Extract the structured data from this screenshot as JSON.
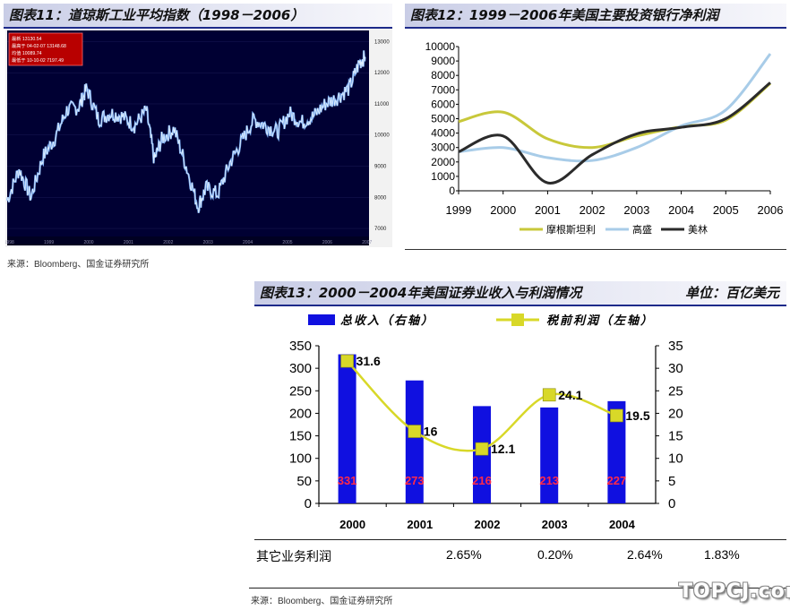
{
  "chart_data": [
    {
      "id": "fig11",
      "type": "line",
      "title": "图表11：道琼斯工业平均指数（1998－2006）",
      "x": [
        1998.0,
        1998.3,
        1998.6,
        1998.9,
        1999.2,
        1999.5,
        1999.8,
        2000.0,
        2000.3,
        2000.6,
        2000.9,
        2001.2,
        2001.5,
        2001.7,
        2001.9,
        2002.2,
        2002.5,
        2002.8,
        2003.0,
        2003.3,
        2003.6,
        2003.9,
        2004.2,
        2004.5,
        2004.8,
        2005.1,
        2005.4,
        2005.7,
        2006.0,
        2006.3,
        2006.6,
        2006.85,
        2007.0
      ],
      "values": [
        7900,
        8900,
        8000,
        9300,
        9900,
        10800,
        10900,
        11500,
        10500,
        10700,
        10600,
        10300,
        10800,
        9200,
        9900,
        10200,
        9000,
        7700,
        8300,
        8100,
        9100,
        9800,
        10500,
        10300,
        10100,
        10700,
        10400,
        10600,
        11000,
        11200,
        11500,
        12300,
        12510
      ],
      "xticks": [
        "1998",
        "1999",
        "2000",
        "2001",
        "2002",
        "2003",
        "2004",
        "2005",
        "2006",
        "2007"
      ],
      "yticks": [
        "7000",
        "8000",
        "9000",
        "10000",
        "11000",
        "12000",
        "13000"
      ],
      "ylim": [
        6800,
        13300
      ],
      "legend_box": [
        {
          "label": "最新",
          "value": "13130.54"
        },
        {
          "label": "最高于",
          "value": "04-02-07 13148.68"
        },
        {
          "label": "均值",
          "value": "10089.74"
        },
        {
          "label": "最低于",
          "value": "10-10-02 7197.49"
        }
      ]
    },
    {
      "id": "fig12",
      "type": "line",
      "title": "图表12：1999－2006年美国主要投资银行净利润",
      "categories": [
        "1999",
        "2000",
        "2001",
        "2002",
        "2003",
        "2004",
        "2005",
        "2006"
      ],
      "ylim": [
        0,
        10000
      ],
      "yticks": [
        "0",
        "1000",
        "2000",
        "3000",
        "4000",
        "5000",
        "6000",
        "7000",
        "8000",
        "9000",
        "10000"
      ],
      "series": [
        {
          "name": "摩根斯坦利",
          "color": "#c8c83a",
          "values": [
            4800,
            5450,
            3600,
            3000,
            3800,
            4450,
            4900,
            7450
          ]
        },
        {
          "name": "高盛",
          "color": "#a8cce8",
          "values": [
            2700,
            3000,
            2300,
            2100,
            3000,
            4500,
            5600,
            9500
          ]
        },
        {
          "name": "美林",
          "color": "#2b2b2b",
          "values": [
            2700,
            3800,
            550,
            2500,
            3950,
            4400,
            5000,
            7500
          ]
        }
      ]
    },
    {
      "id": "fig13",
      "type": "bar",
      "title": "图表13：2000－2004年美国证券业收入与利润情况",
      "unit": "单位：百亿美元",
      "categories": [
        "2000",
        "2001",
        "2002",
        "2003",
        "2004"
      ],
      "y_left": {
        "lim": [
          0,
          350
        ],
        "ticks": [
          "0",
          "50",
          "100",
          "150",
          "200",
          "250",
          "300",
          "350"
        ]
      },
      "y_right": {
        "lim": [
          0,
          35
        ],
        "ticks": [
          "0",
          "5",
          "10",
          "15",
          "20",
          "25",
          "30",
          "35"
        ]
      },
      "series": [
        {
          "name": "总收入（右轴）",
          "type": "bar",
          "color": "#1010e0",
          "axis": "left",
          "values": [
            331,
            273,
            216,
            213,
            227
          ],
          "labels": [
            "331",
            "273",
            "216",
            "213",
            "227"
          ]
        },
        {
          "name": "税前利润（左轴）",
          "type": "line",
          "color": "#d8d828",
          "axis": "right",
          "values": [
            31.6,
            16,
            12.1,
            24.1,
            19.5
          ],
          "labels": [
            "31.6",
            "16",
            "12.1",
            "24.1",
            "19.5"
          ]
        }
      ]
    }
  ],
  "sources": {
    "top": "来源：Bloomberg、国金证券研究所",
    "bottom": "来源：Bloomberg、国金证券研究所"
  },
  "table_row": {
    "label": "其它业务利润",
    "values": [
      "2.65%",
      "0.20%",
      "2.64%",
      "1.83%"
    ]
  },
  "watermark": "TOPCJ.com"
}
